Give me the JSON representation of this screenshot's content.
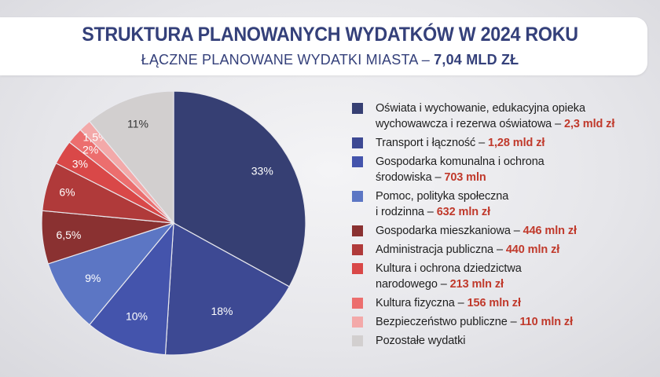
{
  "header": {
    "title": "STRUKTURA PLANOWANYCH WYDATKÓW W 2024 ROKU",
    "subtitle_prefix": "ŁĄCZNE PLANOWANE WYDATKI MIASTA – ",
    "subtitle_value": "7,04 MLD ZŁ"
  },
  "chart_data": {
    "type": "pie",
    "title": "STRUKTURA PLANOWANYCH WYDATKÓW W 2024 ROKU",
    "total": "7,04 MLD ZŁ",
    "slices": [
      {
        "label_line1": "Oświata i wychowanie, edukacyjna opieka",
        "label_line2": "wychowawcza i rezerwa oświatowa – ",
        "amount": "2,3 mld zł",
        "value": 33,
        "pct_label": "33%",
        "color": "#363f73"
      },
      {
        "label_line1": "Transport i łączność – ",
        "label_line2": "",
        "amount": "1,28 mld zł",
        "value": 18,
        "pct_label": "18%",
        "color": "#3d4993"
      },
      {
        "label_line1": "Gospodarka komunalna i ochrona",
        "label_line2": "środowiska – ",
        "amount": "703 mln",
        "value": 10,
        "pct_label": "10%",
        "color": "#4454ac"
      },
      {
        "label_line1": "Pomoc, polityka społeczna",
        "label_line2": "i rodzinna – ",
        "amount": "632 mln zł",
        "value": 9,
        "pct_label": "9%",
        "color": "#5c76c4"
      },
      {
        "label_line1": "Gospodarka mieszkaniowa – ",
        "label_line2": "",
        "amount": "446 mln zł",
        "value": 6.5,
        "pct_label": "6,5%",
        "color": "#8a3131"
      },
      {
        "label_line1": "Administracja publiczna – ",
        "label_line2": "",
        "amount": "440 mln zł",
        "value": 6,
        "pct_label": "6%",
        "color": "#b03a3a"
      },
      {
        "label_line1": "Kultura i ochrona dziedzictwa",
        "label_line2": "narodowego – ",
        "amount": "213 mln zł",
        "value": 3,
        "pct_label": "3%",
        "color": "#d94848"
      },
      {
        "label_line1": "Kultura fizyczna – ",
        "label_line2": "",
        "amount": "156 mln zł",
        "value": 2,
        "pct_label": "2%",
        "color": "#ec6e6e"
      },
      {
        "label_line1": "Bezpieczeństwo publiczne – ",
        "label_line2": "",
        "amount": "110 mln zł",
        "value": 1.5,
        "pct_label": "1,5%",
        "color": "#f3a9a9"
      },
      {
        "label_line1": "Pozostałe wydatki",
        "label_line2": "",
        "amount": "",
        "value": 11,
        "pct_label": "11%",
        "color": "#d2cfcf"
      }
    ],
    "legend_position": "right"
  }
}
